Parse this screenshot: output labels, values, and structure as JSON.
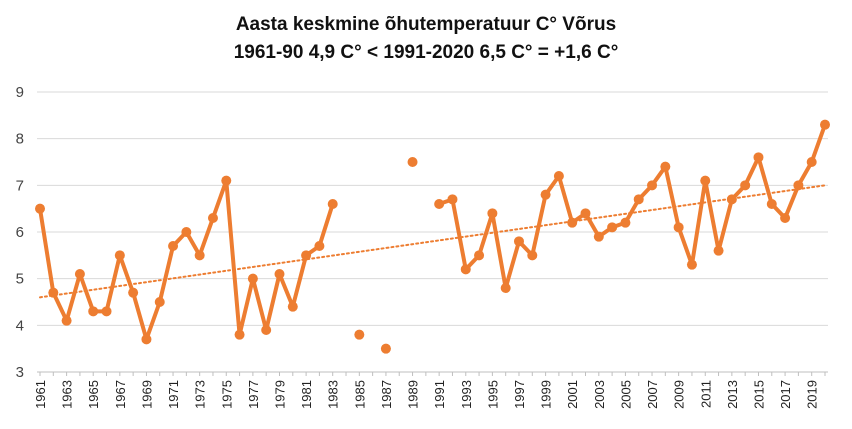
{
  "chart_data": {
    "type": "line",
    "title": "Aasta keskmine õhutemperatuur C° Võrus",
    "subtitle": "1961-90 4,9 C° < 1991-2020 6,5 C° = +1,6 C°",
    "xlabel": "",
    "ylabel": "",
    "ylim": [
      3,
      9
    ],
    "yticks": [
      3,
      4,
      5,
      6,
      7,
      8,
      9
    ],
    "grid": true,
    "legend": "none",
    "x": [
      1961,
      1962,
      1963,
      1964,
      1965,
      1966,
      1967,
      1968,
      1969,
      1970,
      1971,
      1972,
      1973,
      1974,
      1975,
      1976,
      1977,
      1978,
      1979,
      1980,
      1981,
      1982,
      1983,
      1984,
      1985,
      1986,
      1987,
      1988,
      1989,
      1990,
      1991,
      1992,
      1993,
      1994,
      1995,
      1996,
      1997,
      1998,
      1999,
      2000,
      2001,
      2002,
      2003,
      2004,
      2005,
      2006,
      2007,
      2008,
      2009,
      2010,
      2011,
      2012,
      2013,
      2014,
      2015,
      2016,
      2017,
      2018,
      2019,
      2020
    ],
    "xtick_labels": [
      "1961",
      "1963",
      "1965",
      "1967",
      "1969",
      "1971",
      "1973",
      "1975",
      "1977",
      "1979",
      "1981",
      "1983",
      "1985",
      "1987",
      "1989",
      "1991",
      "1993",
      "1995",
      "1997",
      "1999",
      "2001",
      "2003",
      "2005",
      "2007",
      "2009",
      "2011",
      "2013",
      "2015",
      "2017",
      "2019"
    ],
    "series": [
      {
        "values": [
          6.5,
          4.7,
          4.1,
          5.1,
          4.3,
          4.3,
          5.5,
          4.7,
          3.7,
          4.5,
          5.7,
          6.0,
          5.5,
          6.3,
          7.1,
          3.8,
          5.0,
          3.9,
          5.1,
          4.4,
          5.5,
          5.7,
          6.6,
          null,
          3.8,
          null,
          3.5,
          null,
          7.5,
          null,
          6.6,
          6.7,
          5.2,
          5.5,
          6.4,
          4.8,
          5.8,
          5.5,
          6.8,
          7.2,
          6.2,
          6.4,
          5.9,
          6.1,
          6.2,
          6.7,
          7.0,
          7.4,
          6.1,
          5.3,
          7.1,
          5.6,
          6.7,
          7.0,
          7.6,
          6.6,
          6.3,
          7.0,
          7.5,
          8.3
        ],
        "color": "#ED7D31"
      }
    ],
    "trendline": {
      "from_year": 1961,
      "from_value": 4.6,
      "to_year": 2020,
      "to_value": 7.0,
      "style": "dotted",
      "color": "#ED7D31"
    }
  }
}
